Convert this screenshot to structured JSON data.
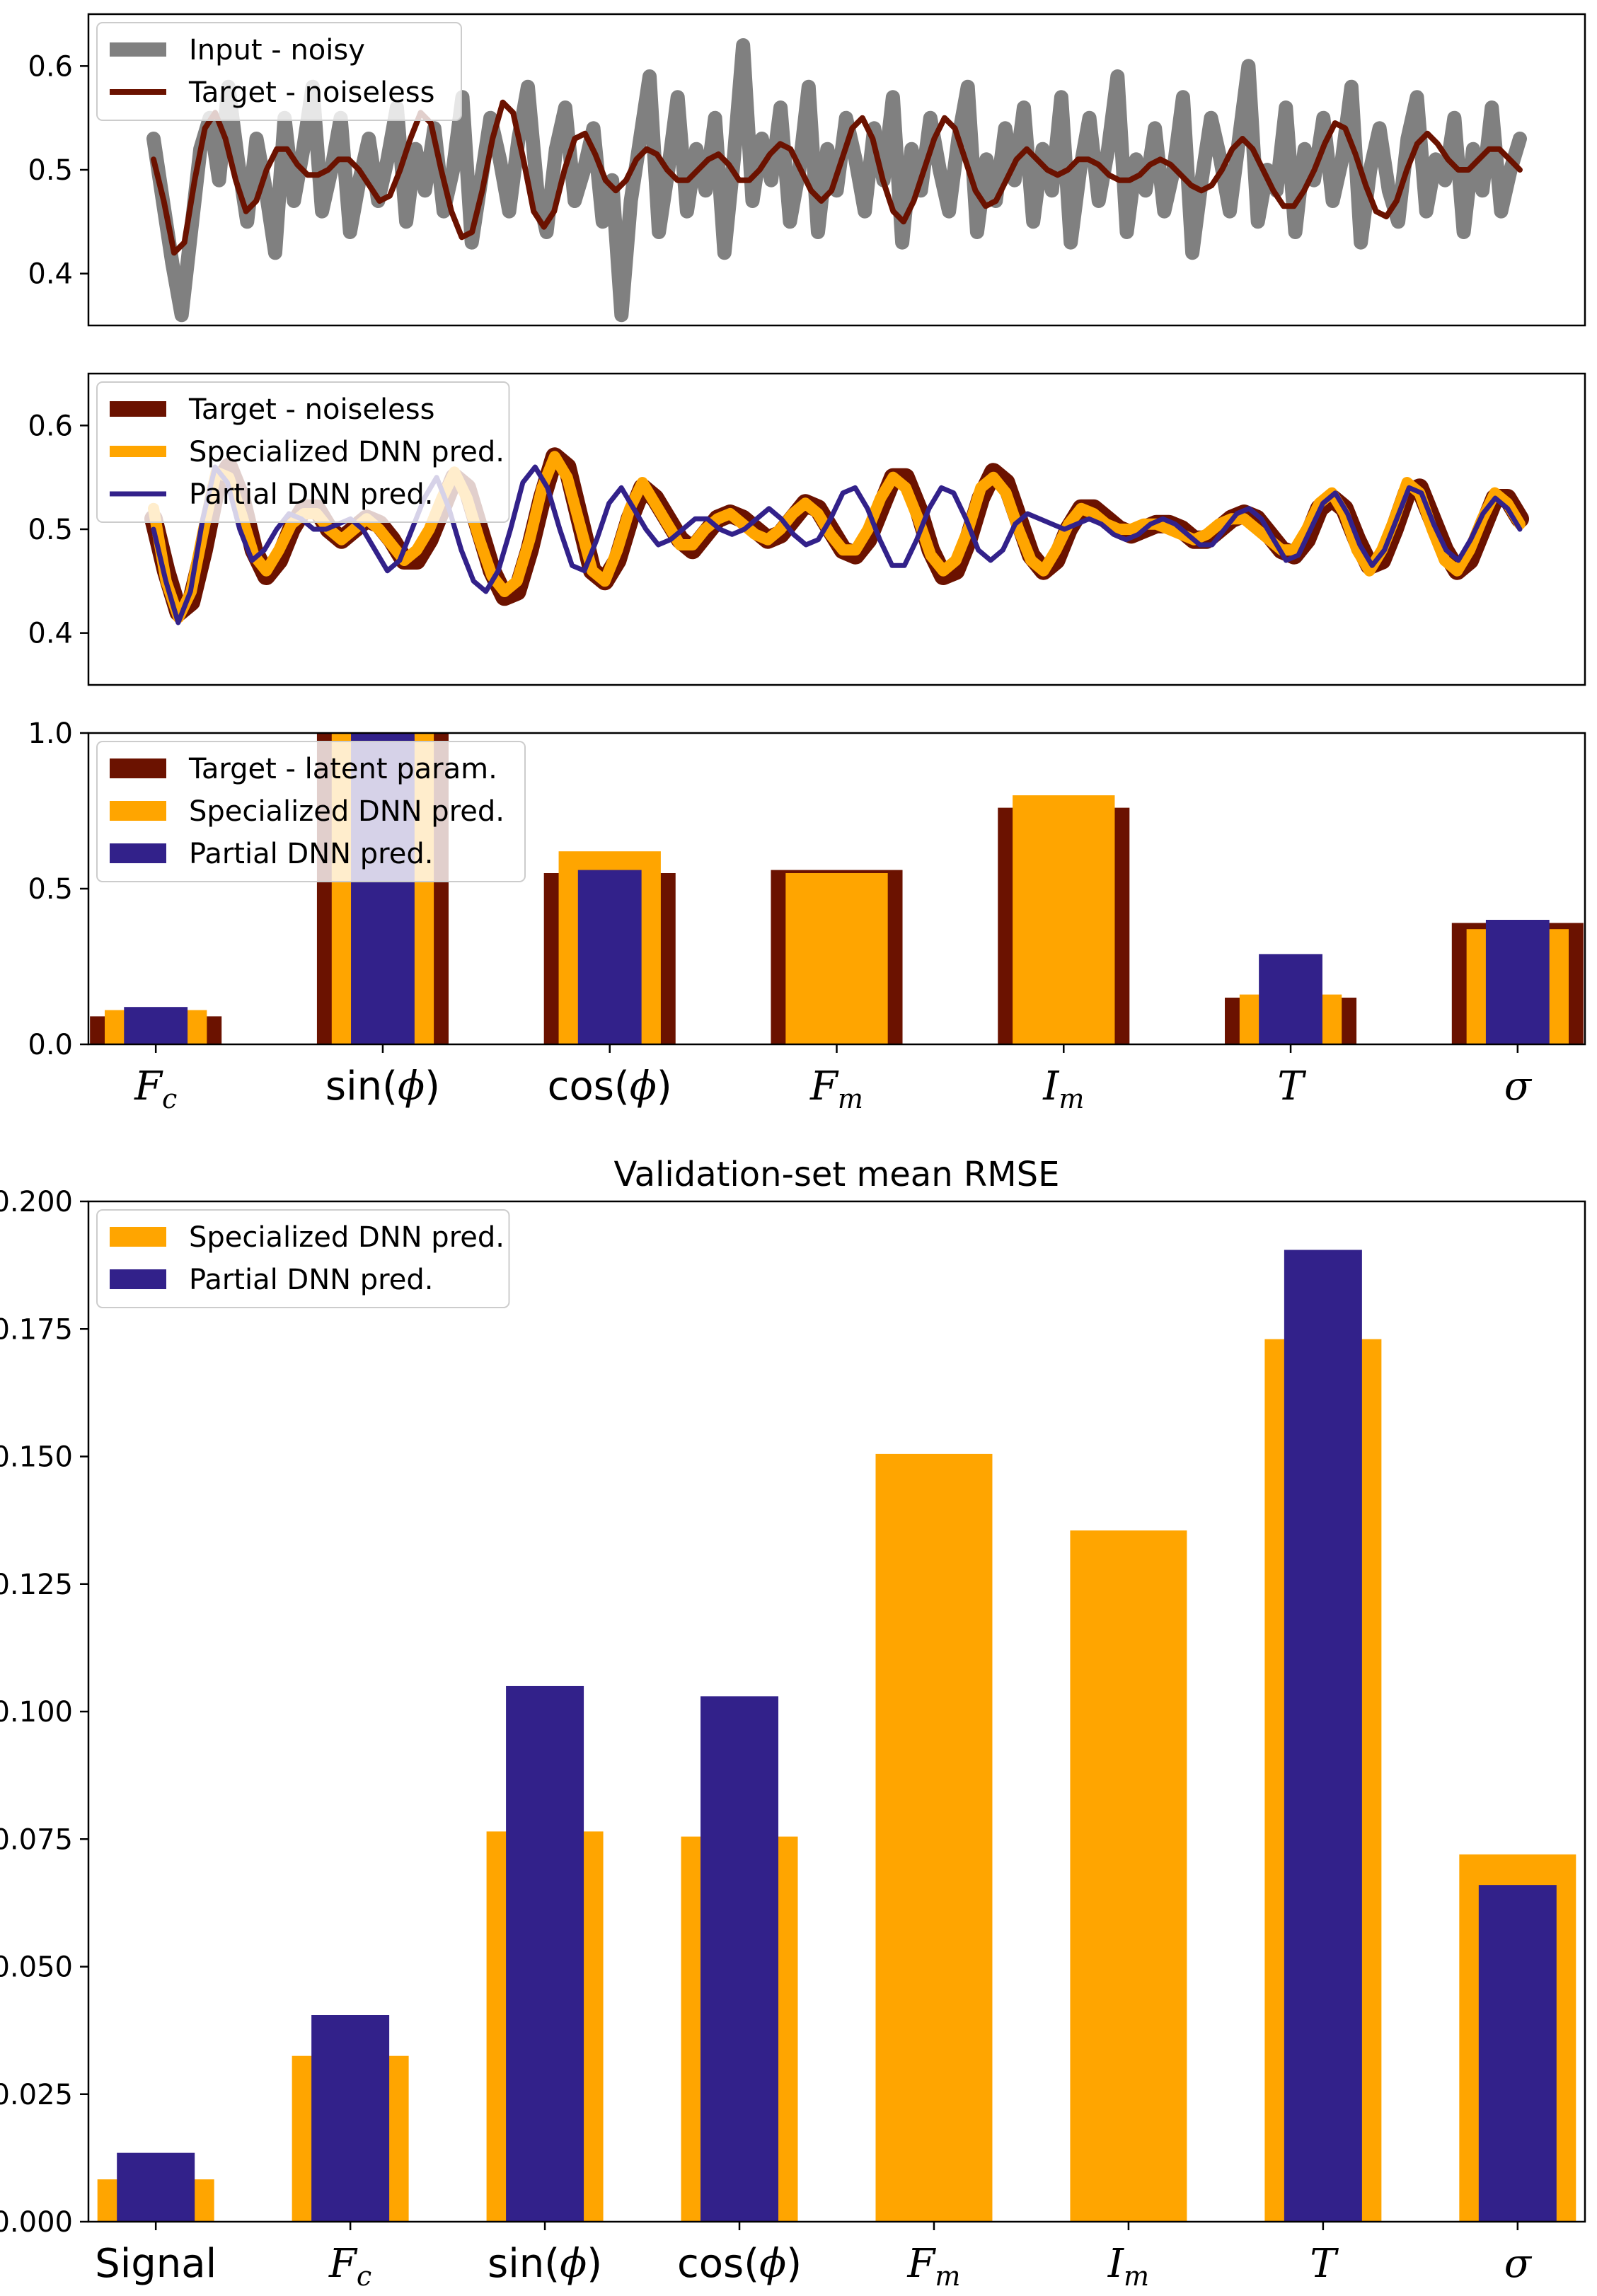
{
  "colors": {
    "noisy": "#808080",
    "target": "#6b1200",
    "specialized": "#ffa500",
    "partial": "#32218a"
  },
  "chart_data": [
    {
      "type": "line",
      "ylim": [
        0.35,
        0.65
      ],
      "yticks": [
        "0.4",
        "0.5",
        "0.6"
      ],
      "legend_position": "top-left",
      "series": [
        {
          "name": "Input - noisy",
          "color_key": "noisy",
          "values": [
            0.53,
            0.47,
            0.41,
            0.36,
            0.44,
            0.52,
            0.55,
            0.49,
            0.58,
            0.51,
            0.45,
            0.53,
            0.48,
            0.42,
            0.55,
            0.47,
            0.52,
            0.58,
            0.46,
            0.5,
            0.55,
            0.44,
            0.49,
            0.53,
            0.47,
            0.51,
            0.56,
            0.45,
            0.52,
            0.48,
            0.54,
            0.46,
            0.5,
            0.57,
            0.43,
            0.49,
            0.55,
            0.51,
            0.46,
            0.53,
            0.58,
            0.48,
            0.44,
            0.52,
            0.56,
            0.47,
            0.5,
            0.54,
            0.45,
            0.49,
            0.36,
            0.47,
            0.53,
            0.59,
            0.44,
            0.5,
            0.57,
            0.46,
            0.52,
            0.48,
            0.55,
            0.42,
            0.51,
            0.62,
            0.47,
            0.53,
            0.49,
            0.56,
            0.45,
            0.5,
            0.58,
            0.44,
            0.52,
            0.48,
            0.55,
            0.51,
            0.46,
            0.54,
            0.49,
            0.57,
            0.43,
            0.52,
            0.48,
            0.55,
            0.5,
            0.46,
            0.53,
            0.58,
            0.44,
            0.51,
            0.47,
            0.54,
            0.49,
            0.56,
            0.45,
            0.52,
            0.48,
            0.57,
            0.43,
            0.5,
            0.55,
            0.47,
            0.52,
            0.59,
            0.44,
            0.51,
            0.48,
            0.54,
            0.46,
            0.5,
            0.57,
            0.42,
            0.49,
            0.55,
            0.51,
            0.46,
            0.53,
            0.6,
            0.45,
            0.5,
            0.48,
            0.56,
            0.44,
            0.52,
            0.49,
            0.55,
            0.47,
            0.51,
            0.58,
            0.43,
            0.5,
            0.54,
            0.48,
            0.45,
            0.53,
            0.57,
            0.46,
            0.51,
            0.49,
            0.55,
            0.44,
            0.52,
            0.48,
            0.56,
            0.46,
            0.5,
            0.53
          ]
        },
        {
          "name": "Target - noiseless",
          "color_key": "target",
          "values": [
            0.51,
            0.47,
            0.42,
            0.43,
            0.49,
            0.54,
            0.555,
            0.53,
            0.49,
            0.46,
            0.47,
            0.5,
            0.52,
            0.52,
            0.505,
            0.495,
            0.495,
            0.5,
            0.51,
            0.51,
            0.5,
            0.485,
            0.47,
            0.475,
            0.5,
            0.53,
            0.555,
            0.545,
            0.5,
            0.46,
            0.435,
            0.44,
            0.48,
            0.53,
            0.565,
            0.555,
            0.51,
            0.46,
            0.445,
            0.46,
            0.5,
            0.53,
            0.535,
            0.515,
            0.49,
            0.48,
            0.49,
            0.51,
            0.52,
            0.515,
            0.5,
            0.49,
            0.49,
            0.5,
            0.51,
            0.515,
            0.505,
            0.49,
            0.49,
            0.5,
            0.515,
            0.525,
            0.52,
            0.5,
            0.48,
            0.47,
            0.48,
            0.51,
            0.54,
            0.55,
            0.53,
            0.49,
            0.46,
            0.45,
            0.47,
            0.5,
            0.53,
            0.55,
            0.54,
            0.51,
            0.48,
            0.465,
            0.47,
            0.49,
            0.51,
            0.52,
            0.51,
            0.5,
            0.495,
            0.5,
            0.51,
            0.51,
            0.505,
            0.495,
            0.49,
            0.49,
            0.495,
            0.505,
            0.51,
            0.505,
            0.495,
            0.485,
            0.48,
            0.485,
            0.5,
            0.52,
            0.53,
            0.52,
            0.5,
            0.48,
            0.465,
            0.465,
            0.48,
            0.5,
            0.525,
            0.545,
            0.54,
            0.515,
            0.485,
            0.46,
            0.455,
            0.47,
            0.5,
            0.525,
            0.535,
            0.525,
            0.51,
            0.5,
            0.5,
            0.51,
            0.52,
            0.52,
            0.51,
            0.5
          ]
        }
      ]
    },
    {
      "type": "line",
      "ylim": [
        0.35,
        0.65
      ],
      "yticks": [
        "0.4",
        "0.5",
        "0.6"
      ],
      "legend_position": "top-left",
      "series": [
        {
          "name": "Target - noiseless",
          "color_key": "target",
          "values": [
            0.51,
            0.46,
            0.42,
            0.43,
            0.48,
            0.54,
            0.56,
            0.53,
            0.48,
            0.455,
            0.47,
            0.5,
            0.52,
            0.52,
            0.5,
            0.49,
            0.5,
            0.51,
            0.505,
            0.49,
            0.47,
            0.47,
            0.49,
            0.52,
            0.55,
            0.54,
            0.5,
            0.46,
            0.435,
            0.44,
            0.48,
            0.53,
            0.57,
            0.56,
            0.51,
            0.46,
            0.45,
            0.47,
            0.51,
            0.54,
            0.53,
            0.51,
            0.49,
            0.48,
            0.495,
            0.51,
            0.515,
            0.51,
            0.5,
            0.49,
            0.495,
            0.51,
            0.525,
            0.52,
            0.5,
            0.48,
            0.475,
            0.49,
            0.52,
            0.55,
            0.55,
            0.52,
            0.48,
            0.455,
            0.46,
            0.49,
            0.53,
            0.555,
            0.545,
            0.51,
            0.475,
            0.46,
            0.47,
            0.5,
            0.52,
            0.52,
            0.51,
            0.5,
            0.495,
            0.5,
            0.505,
            0.505,
            0.5,
            0.49,
            0.49,
            0.5,
            0.51,
            0.515,
            0.51,
            0.495,
            0.48,
            0.475,
            0.49,
            0.52,
            0.53,
            0.52,
            0.49,
            0.465,
            0.47,
            0.5,
            0.535,
            0.54,
            0.51,
            0.48,
            0.46,
            0.47,
            0.5,
            0.53,
            0.53,
            0.51
          ]
        },
        {
          "name": "Specialized DNN pred.",
          "color_key": "specialized",
          "values": [
            0.52,
            0.45,
            0.415,
            0.44,
            0.5,
            0.555,
            0.55,
            0.515,
            0.475,
            0.46,
            0.48,
            0.505,
            0.515,
            0.515,
            0.5,
            0.49,
            0.5,
            0.51,
            0.5,
            0.485,
            0.47,
            0.48,
            0.5,
            0.53,
            0.555,
            0.53,
            0.49,
            0.455,
            0.44,
            0.45,
            0.49,
            0.54,
            0.57,
            0.55,
            0.505,
            0.46,
            0.45,
            0.48,
            0.52,
            0.545,
            0.525,
            0.505,
            0.485,
            0.485,
            0.5,
            0.51,
            0.515,
            0.505,
            0.495,
            0.49,
            0.5,
            0.515,
            0.525,
            0.515,
            0.495,
            0.48,
            0.48,
            0.5,
            0.53,
            0.55,
            0.54,
            0.51,
            0.475,
            0.46,
            0.47,
            0.5,
            0.54,
            0.55,
            0.535,
            0.5,
            0.47,
            0.46,
            0.48,
            0.505,
            0.52,
            0.515,
            0.505,
            0.5,
            0.5,
            0.505,
            0.505,
            0.5,
            0.495,
            0.49,
            0.495,
            0.505,
            0.51,
            0.51,
            0.5,
            0.49,
            0.48,
            0.48,
            0.5,
            0.525,
            0.535,
            0.515,
            0.48,
            0.46,
            0.48,
            0.51,
            0.545,
            0.535,
            0.5,
            0.47,
            0.46,
            0.48,
            0.51,
            0.535,
            0.525,
            0.505
          ]
        },
        {
          "name": "Partial DNN pred.",
          "color_key": "partial",
          "values": [
            0.5,
            0.45,
            0.41,
            0.44,
            0.51,
            0.56,
            0.545,
            0.5,
            0.47,
            0.48,
            0.5,
            0.515,
            0.51,
            0.5,
            0.5,
            0.505,
            0.51,
            0.5,
            0.48,
            0.46,
            0.47,
            0.5,
            0.53,
            0.55,
            0.52,
            0.48,
            0.45,
            0.44,
            0.46,
            0.5,
            0.545,
            0.56,
            0.54,
            0.5,
            0.465,
            0.46,
            0.49,
            0.525,
            0.54,
            0.52,
            0.5,
            0.485,
            0.49,
            0.5,
            0.51,
            0.51,
            0.5,
            0.495,
            0.5,
            0.51,
            0.52,
            0.51,
            0.495,
            0.485,
            0.49,
            0.51,
            0.535,
            0.54,
            0.52,
            0.49,
            0.465,
            0.465,
            0.49,
            0.52,
            0.54,
            0.535,
            0.51,
            0.48,
            0.47,
            0.48,
            0.505,
            0.515,
            0.51,
            0.505,
            0.5,
            0.505,
            0.51,
            0.505,
            0.495,
            0.49,
            0.495,
            0.505,
            0.51,
            0.505,
            0.495,
            0.485,
            0.485,
            0.5,
            0.515,
            0.52,
            0.51,
            0.49,
            0.47,
            0.475,
            0.5,
            0.525,
            0.535,
            0.515,
            0.485,
            0.465,
            0.48,
            0.51,
            0.54,
            0.535,
            0.505,
            0.48,
            0.47,
            0.49,
            0.515,
            0.53,
            0.52,
            0.5
          ]
        }
      ]
    },
    {
      "type": "bar",
      "ylim": [
        0.0,
        1.0
      ],
      "yticks": [
        "0.0",
        "0.5",
        "1.0"
      ],
      "legend_position": "top-left",
      "categories": [
        {
          "base": "F",
          "sub": "c"
        },
        {
          "pre": "sin(",
          "it": "ϕ",
          "post": ")"
        },
        {
          "pre": "cos(",
          "it": "ϕ",
          "post": ")"
        },
        {
          "base": "F",
          "sub": "m"
        },
        {
          "base": "I",
          "sub": "m"
        },
        {
          "base": "T"
        },
        {
          "base": "σ"
        }
      ],
      "series": [
        {
          "name": "Target - latent param.",
          "color_key": "target",
          "values": [
            0.09,
            1.0,
            0.55,
            0.56,
            0.76,
            0.15,
            0.39
          ]
        },
        {
          "name": "Specialized DNN pred.",
          "color_key": "specialized",
          "values": [
            0.11,
            1.0,
            0.62,
            0.55,
            0.8,
            0.16,
            0.37
          ]
        },
        {
          "name": "Partial DNN pred.",
          "color_key": "partial",
          "values": [
            0.12,
            1.0,
            0.56,
            null,
            null,
            0.29,
            0.4
          ]
        }
      ]
    },
    {
      "type": "bar",
      "title": "Validation-set mean RMSE",
      "ylim": [
        0.0,
        0.2
      ],
      "yticks": [
        "0.000",
        "0.025",
        "0.050",
        "0.075",
        "0.100",
        "0.125",
        "0.150",
        "0.175",
        "0.200"
      ],
      "legend_position": "top-left",
      "categories": [
        {
          "base": "Signal",
          "plain": true
        },
        {
          "base": "F",
          "sub": "c"
        },
        {
          "pre": "sin(",
          "it": "ϕ",
          "post": ")"
        },
        {
          "pre": "cos(",
          "it": "ϕ",
          "post": ")"
        },
        {
          "base": "F",
          "sub": "m"
        },
        {
          "base": "I",
          "sub": "m"
        },
        {
          "base": "T"
        },
        {
          "base": "σ"
        }
      ],
      "series": [
        {
          "name": "Specialized DNN pred.",
          "color_key": "specialized",
          "values": [
            0.0083,
            0.0325,
            0.0765,
            0.0755,
            0.1505,
            0.1355,
            0.173,
            0.072
          ]
        },
        {
          "name": "Partial DNN pred.",
          "color_key": "partial",
          "values": [
            0.0135,
            0.0405,
            0.105,
            0.103,
            null,
            null,
            0.1905,
            0.066
          ]
        }
      ]
    }
  ]
}
